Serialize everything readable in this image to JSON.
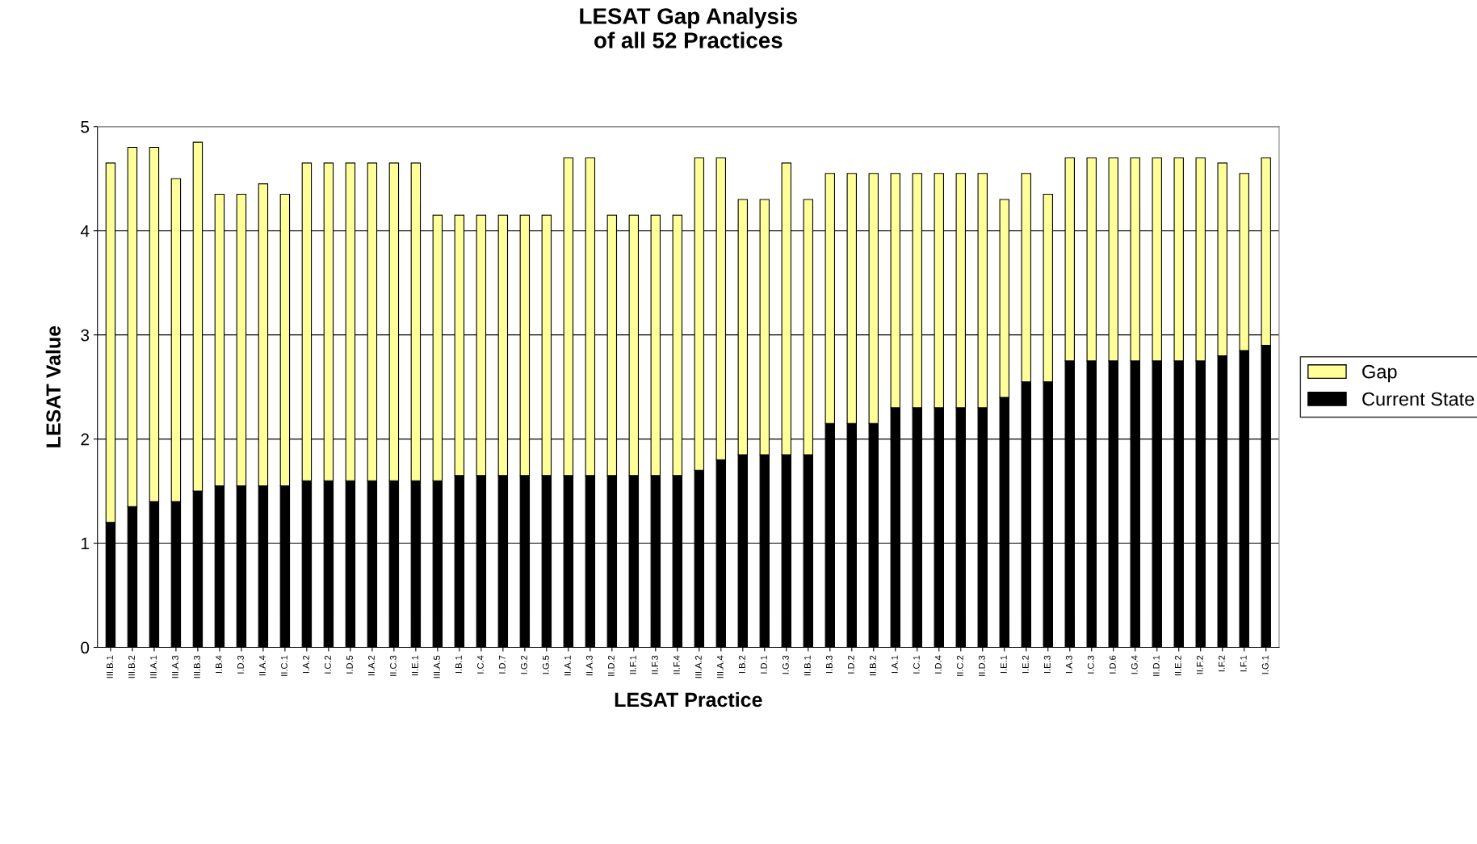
{
  "chart_data": {
    "type": "bar",
    "title": "LESAT Gap Analysis\nof all 52 Practices",
    "xlabel": "LESAT Practice",
    "ylabel": "LESAT Value",
    "categories": [
      "III.B.1",
      "III.B.2",
      "III.A.1",
      "III.A.3",
      "III.B.3",
      "I.B.4",
      "I.D.3",
      "II.A.4",
      "II.C.1",
      "I.A.2",
      "I.C.2",
      "I.D.5",
      "II.A.2",
      "II.C.3",
      "II.E.1",
      "III.A.5",
      "I.B.1",
      "I.C.4",
      "I.D.7",
      "I.G.2",
      "I.G.5",
      "II.A.1",
      "II.A.3",
      "II.D.2",
      "II.F.1",
      "II.F.3",
      "II.F.4",
      "III.A.2",
      "III.A.4",
      "I.B.2",
      "I.D.1",
      "I.G.3",
      "II.B.1",
      "I.B.3",
      "I.D.2",
      "II.B.2",
      "I.A.1",
      "I.C.1",
      "I.D.4",
      "II.C.2",
      "II.D.3",
      "I.E.1",
      "I.E.2",
      "I.E.3",
      "I.A.3",
      "I.C.3",
      "I.D.6",
      "I.G.4",
      "II.D.1",
      "II.E.2",
      "II.F.2",
      "I.F.2",
      "I.F.1",
      "I.G.1"
    ],
    "series": [
      {
        "name": "Current State",
        "color": "#000000",
        "values": [
          1.2,
          1.35,
          1.4,
          1.4,
          1.5,
          1.55,
          1.55,
          1.55,
          1.55,
          1.6,
          1.6,
          1.6,
          1.6,
          1.6,
          1.6,
          1.6,
          1.65,
          1.65,
          1.65,
          1.65,
          1.65,
          1.65,
          1.65,
          1.65,
          1.65,
          1.65,
          1.65,
          1.7,
          1.8,
          1.85,
          1.85,
          1.85,
          1.85,
          2.15,
          2.15,
          2.15,
          2.3,
          2.3,
          2.3,
          2.3,
          2.3,
          2.4,
          2.55,
          2.55,
          2.75,
          2.75,
          2.75,
          2.75,
          2.75,
          2.75,
          2.75,
          2.8,
          2.85,
          2.9
        ]
      },
      {
        "name": "Gap",
        "color": "#ffff99",
        "values": [
          3.45,
          3.45,
          3.4,
          3.1,
          3.35,
          2.8,
          2.8,
          2.9,
          2.8,
          3.05,
          3.05,
          3.05,
          3.05,
          3.05,
          3.05,
          2.55,
          2.5,
          2.5,
          2.5,
          2.5,
          2.5,
          3.05,
          3.05,
          2.5,
          2.5,
          2.5,
          2.5,
          3.0,
          2.9,
          2.45,
          2.45,
          2.8,
          2.45,
          2.4,
          2.4,
          2.4,
          2.25,
          2.25,
          2.25,
          2.25,
          2.25,
          1.9,
          2.0,
          1.8,
          1.95,
          1.95,
          1.95,
          1.95,
          1.95,
          1.95,
          1.95,
          1.85,
          1.7,
          1.8
        ]
      }
    ],
    "stacked": true,
    "ylim": [
      0,
      5
    ],
    "yticks": [
      0,
      1,
      2,
      3,
      4,
      5
    ],
    "grid": "y",
    "legend": "right"
  }
}
